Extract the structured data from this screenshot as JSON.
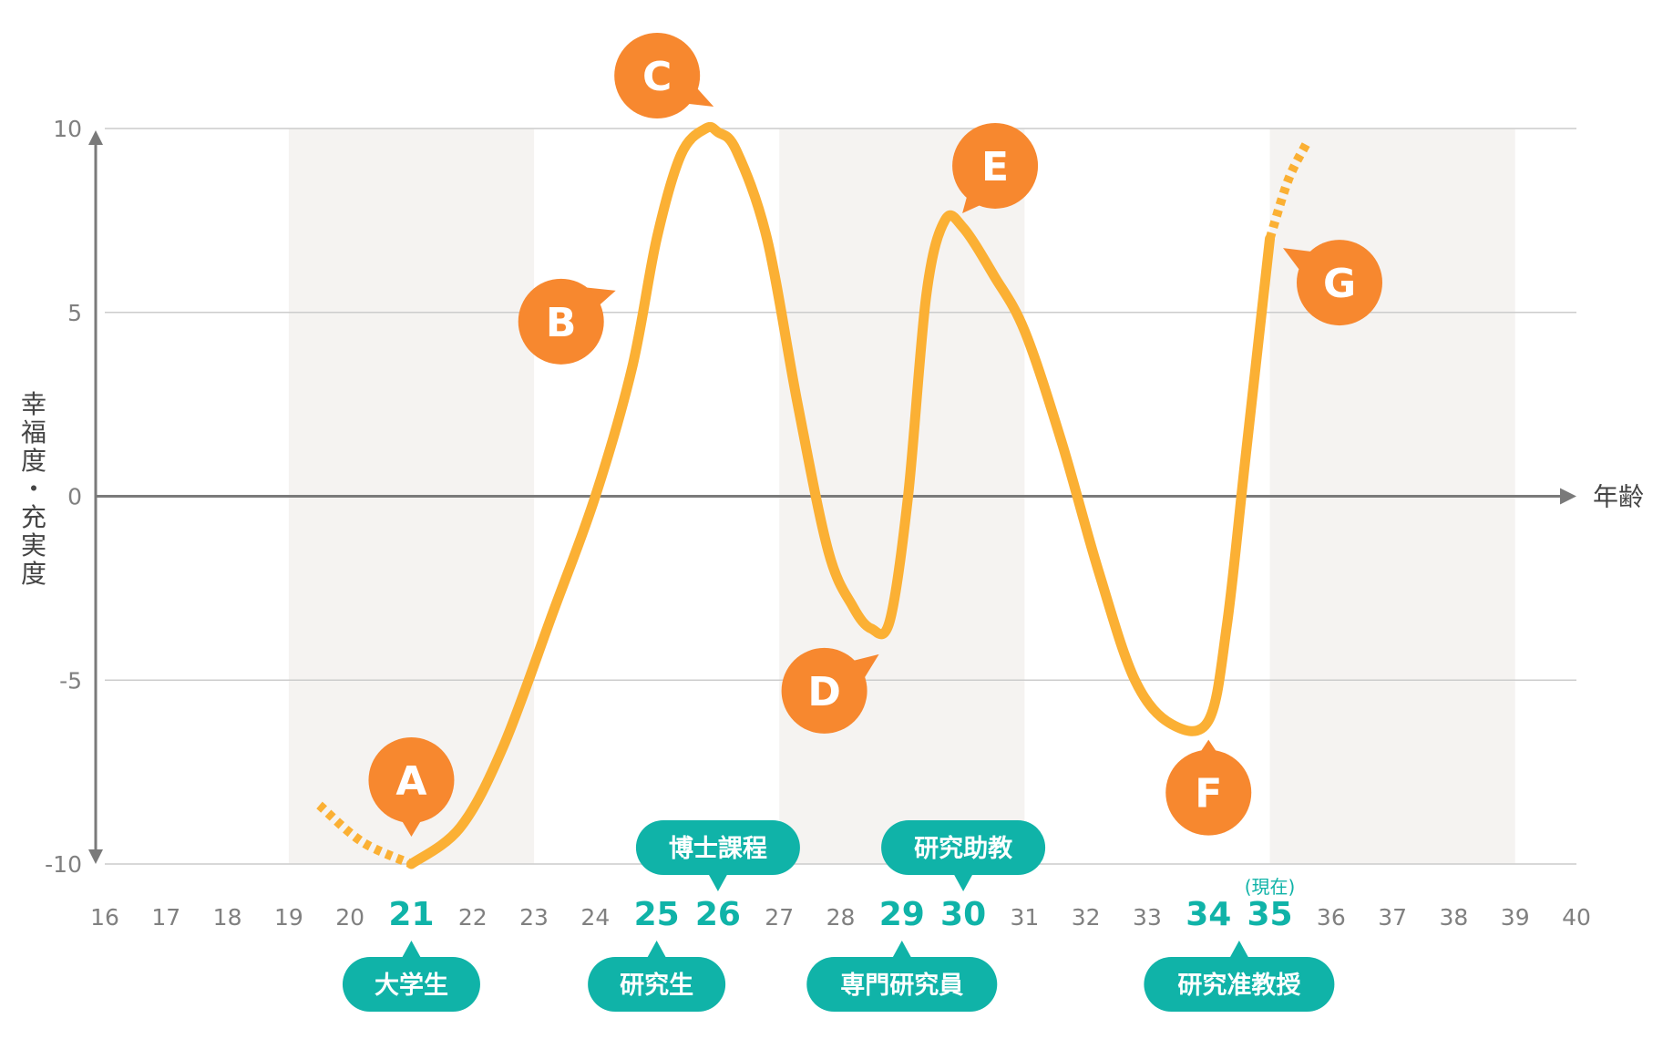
{
  "chart_data": {
    "type": "line",
    "title": "",
    "xlabel": "年齢",
    "ylabel": "幸福度・充実度",
    "xlim": [
      16,
      40
    ],
    "ylim": [
      -10,
      10
    ],
    "x_ticks": [
      16,
      17,
      18,
      19,
      20,
      21,
      22,
      23,
      24,
      25,
      26,
      27,
      28,
      29,
      30,
      31,
      32,
      33,
      34,
      35,
      36,
      37,
      38,
      39,
      40
    ],
    "y_ticks": [
      10,
      5,
      0,
      -5,
      -10
    ],
    "highlighted_ages": [
      21,
      25,
      26,
      29,
      30,
      34,
      35
    ],
    "shaded_bands": [
      [
        19,
        23
      ],
      [
        27,
        31
      ],
      [
        35,
        39
      ]
    ],
    "grid": true,
    "current_label": "(現在)",
    "current_age": 35,
    "series": [
      {
        "x": [
          21,
          21.8,
          22.5,
          23.3,
          24.0,
          24.6,
          25.0,
          25.4,
          25.8,
          26.0,
          26.3,
          26.8,
          27.3,
          27.8,
          28.2,
          28.5,
          28.8,
          29.1,
          29.4,
          29.7,
          30.0,
          30.5,
          31.0,
          31.6,
          32.2,
          32.8,
          33.4,
          34.0,
          34.3,
          34.6,
          35.0
        ],
        "y": [
          -10,
          -9.0,
          -6.8,
          -3.2,
          0.0,
          3.5,
          7.0,
          9.3,
          10.0,
          9.9,
          9.4,
          7.0,
          2.5,
          -1.5,
          -3.0,
          -3.6,
          -3.4,
          0.0,
          5.5,
          7.5,
          7.3,
          6.0,
          4.5,
          1.5,
          -2.0,
          -5.0,
          -6.2,
          -6.1,
          -3.5,
          1.0,
          7.0
        ]
      }
    ],
    "dashed_lead_in": {
      "x": [
        19.5,
        20.2,
        21
      ],
      "y": [
        -8.4,
        -9.4,
        -10
      ]
    },
    "dashed_lead_out": {
      "x": [
        35.0,
        35.3,
        35.6
      ],
      "y": [
        7.0,
        8.6,
        9.6
      ]
    },
    "markers": [
      {
        "label": "A",
        "x": 21,
        "y": -10,
        "pos": "above"
      },
      {
        "label": "B",
        "x": 24.6,
        "y": 4.8,
        "pos": "left"
      },
      {
        "label": "C",
        "x": 25.9,
        "y": 10,
        "pos": "upper-left"
      },
      {
        "label": "D",
        "x": 28.7,
        "y": -3.9,
        "pos": "lower-left"
      },
      {
        "label": "E",
        "x": 30,
        "y": 7.3,
        "pos": "upper-right"
      },
      {
        "label": "F",
        "x": 34,
        "y": -6.2,
        "pos": "below"
      },
      {
        "label": "G",
        "x": 35.2,
        "y": 6.9,
        "pos": "right"
      }
    ],
    "milestones": [
      {
        "label": "大学生",
        "age": 21,
        "pos": "below"
      },
      {
        "label": "研究生",
        "age": 25,
        "pos": "below"
      },
      {
        "label": "博士課程",
        "age": 26,
        "pos": "above"
      },
      {
        "label": "専門研究員",
        "age": 29,
        "pos": "below"
      },
      {
        "label": "研究助教",
        "age": 30,
        "pos": "above"
      },
      {
        "label": "研究准教授",
        "age": 34.5,
        "pos": "below"
      }
    ],
    "colors": {
      "curve": "#FBB034",
      "marker": "#F7882F",
      "teal": "#10B3A8",
      "band": "#F5F3F1",
      "grid": "#CCCCCC",
      "axis": "#7A7A7A",
      "tick_text": "#808080",
      "label_text": "#444444"
    }
  }
}
